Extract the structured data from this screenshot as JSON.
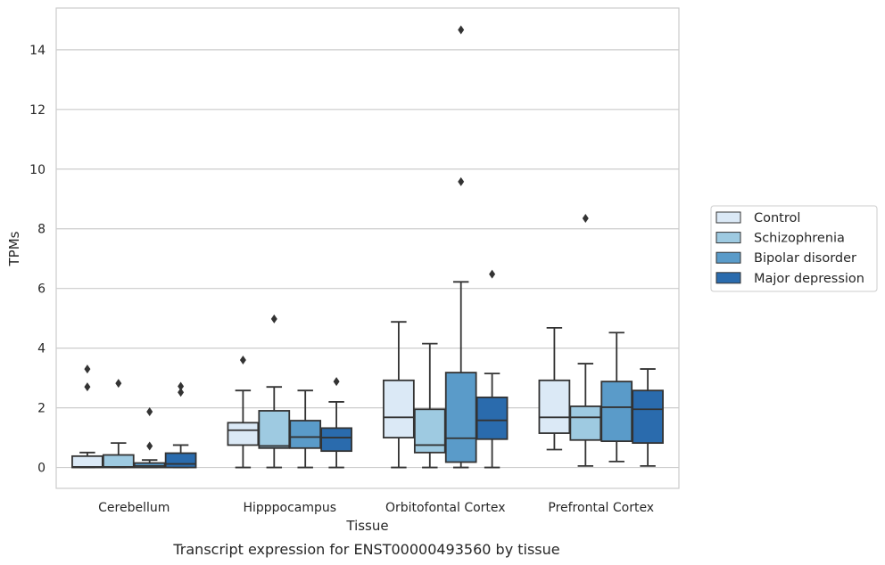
{
  "chart_data": {
    "type": "box",
    "xlabel": "Tissue",
    "ylabel": "TPMs",
    "caption": "Transcript expression for ENST00000493560 by tissue",
    "ylim": [
      -0.7,
      15.4
    ],
    "yticks": [
      0,
      2,
      4,
      6,
      8,
      10,
      12,
      14
    ],
    "grid": "horizontal",
    "legend_position": "right",
    "categories": [
      "Cerebellum",
      "Hipppocampus",
      "Orbitofontal Cortex",
      "Prefrontal Cortex"
    ],
    "series": [
      {
        "name": "Control",
        "color": "#dbe9f6",
        "boxes": [
          {
            "whisker_low": 0.0,
            "q1": 0.0,
            "median": 0.02,
            "q3": 0.38,
            "whisker_high": 0.5,
            "outliers": [
              2.7,
              3.3
            ]
          },
          {
            "whisker_low": 0.0,
            "q1": 0.75,
            "median": 1.25,
            "q3": 1.5,
            "whisker_high": 2.58,
            "outliers": [
              3.6
            ]
          },
          {
            "whisker_low": 0.0,
            "q1": 1.0,
            "median": 1.68,
            "q3": 2.92,
            "whisker_high": 4.88,
            "outliers": []
          },
          {
            "whisker_low": 0.6,
            "q1": 1.15,
            "median": 1.68,
            "q3": 2.92,
            "whisker_high": 4.68,
            "outliers": []
          }
        ]
      },
      {
        "name": "Schizophrenia",
        "color": "#9ecae1",
        "boxes": [
          {
            "whisker_low": 0.0,
            "q1": 0.0,
            "median": 0.02,
            "q3": 0.42,
            "whisker_high": 0.82,
            "outliers": [
              2.82
            ]
          },
          {
            "whisker_low": 0.0,
            "q1": 0.65,
            "median": 0.72,
            "q3": 1.9,
            "whisker_high": 2.7,
            "outliers": [
              4.98
            ]
          },
          {
            "whisker_low": 0.0,
            "q1": 0.5,
            "median": 0.75,
            "q3": 1.95,
            "whisker_high": 4.15,
            "outliers": []
          },
          {
            "whisker_low": 0.05,
            "q1": 0.92,
            "median": 1.68,
            "q3": 2.05,
            "whisker_high": 3.48,
            "outliers": [
              8.35
            ]
          }
        ]
      },
      {
        "name": "Bipolar disorder",
        "color": "#5a9bc9",
        "boxes": [
          {
            "whisker_low": 0.0,
            "q1": 0.0,
            "median": 0.05,
            "q3": 0.15,
            "whisker_high": 0.25,
            "outliers": [
              0.72,
              1.87
            ]
          },
          {
            "whisker_low": 0.0,
            "q1": 0.65,
            "median": 1.02,
            "q3": 1.57,
            "whisker_high": 2.58,
            "outliers": []
          },
          {
            "whisker_low": 0.0,
            "q1": 0.18,
            "median": 0.98,
            "q3": 3.18,
            "whisker_high": 6.22,
            "outliers": [
              9.58,
              14.67
            ]
          },
          {
            "whisker_low": 0.2,
            "q1": 0.88,
            "median": 2.02,
            "q3": 2.88,
            "whisker_high": 4.52,
            "outliers": []
          }
        ]
      },
      {
        "name": "Major depression",
        "color": "#2a6bad",
        "boxes": [
          {
            "whisker_low": 0.0,
            "q1": 0.0,
            "median": 0.12,
            "q3": 0.48,
            "whisker_high": 0.75,
            "outliers": [
              2.52,
              2.72
            ]
          },
          {
            "whisker_low": 0.0,
            "q1": 0.55,
            "median": 1.0,
            "q3": 1.32,
            "whisker_high": 2.2,
            "outliers": [
              2.88
            ]
          },
          {
            "whisker_low": 0.0,
            "q1": 0.95,
            "median": 1.58,
            "q3": 2.35,
            "whisker_high": 3.15,
            "outliers": [
              6.48
            ]
          },
          {
            "whisker_low": 0.05,
            "q1": 0.82,
            "median": 1.95,
            "q3": 2.58,
            "whisker_high": 3.3,
            "outliers": []
          }
        ]
      }
    ]
  }
}
